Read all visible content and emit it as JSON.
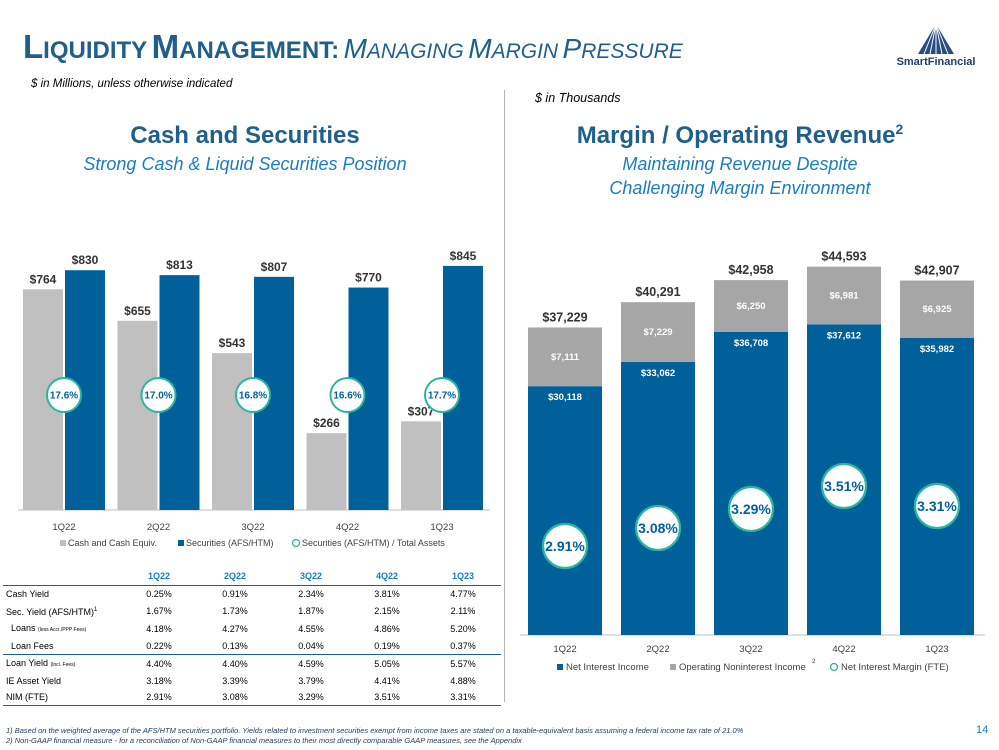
{
  "title": {
    "part1_cap": "L",
    "part1_rest": "IQUIDITY",
    "part2_cap": "M",
    "part2_rest": "ANAGEMENT:",
    "part3_cap": "M",
    "part3_rest": "ANAGING",
    "part4_cap": "M",
    "part4_rest": "ARGIN",
    "part5_cap": "P",
    "part5_rest": "RESSURE"
  },
  "brand": {
    "name": "SmartFinancial"
  },
  "left_note": "$ in Millions, unless otherwise indicated",
  "right_note": "$ in Thousands",
  "left_heading": "Cash and Securities",
  "left_subheading": "Strong Cash & Liquid Securities Position",
  "right_heading": "Margin / Operating Revenue",
  "right_heading_sup": "2",
  "right_subheading_line1": "Maintaining Revenue Despite",
  "right_subheading_line2": "Challenging Margin Environment",
  "colors": {
    "navy": "#00609a",
    "gray": "#c0c0c0",
    "dark_gray": "#a6a6a6",
    "teal": "#2bb5a0",
    "title_blue": "#1f5f8c",
    "accent_blue": "#1a7dbf"
  },
  "chart_data": [
    {
      "type": "bar",
      "categories": [
        "1Q22",
        "2Q22",
        "3Q22",
        "4Q22",
        "1Q23"
      ],
      "series": [
        {
          "name": "Cash and Cash Equiv.",
          "values": [
            764,
            655,
            543,
            266,
            307
          ],
          "labels": [
            "$764",
            "$655",
            "$543",
            "$266",
            "$307"
          ]
        },
        {
          "name": "Securities (AFS/HTM)",
          "values": [
            830,
            813,
            807,
            770,
            845
          ],
          "labels": [
            "$830",
            "$813",
            "$807",
            "$770",
            "$845"
          ]
        },
        {
          "name": "Securities (AFS/HTM) / Total Assets",
          "values": [
            17.6,
            17.0,
            16.8,
            16.6,
            17.7
          ],
          "labels": [
            "17.6%",
            "17.0%",
            "16.8%",
            "16.6%",
            "17.7%"
          ]
        }
      ],
      "ylim": [
        0,
        900
      ],
      "legend": [
        "Cash and Cash Equiv.",
        "Securities (AFS/HTM)",
        "Securities (AFS/HTM) / Total Assets"
      ]
    },
    {
      "type": "stacked bar",
      "categories": [
        "1Q22",
        "2Q22",
        "3Q22",
        "4Q22",
        "1Q23"
      ],
      "series": [
        {
          "name": "Net Interest Income",
          "values": [
            30118,
            33062,
            36708,
            37612,
            35982
          ],
          "labels": [
            "$30,118",
            "$33,062",
            "$36,708",
            "$37,612",
            "$35,982"
          ]
        },
        {
          "name": "Operating Noninterest Income",
          "values": [
            7111,
            7229,
            6250,
            6981,
            6925
          ],
          "labels": [
            "$7,111",
            "$7,229",
            "$6,250",
            "$6,981",
            "$6,925"
          ]
        },
        {
          "name": "Net Interest Margin (FTE)",
          "values": [
            2.91,
            3.08,
            3.29,
            3.51,
            3.31
          ],
          "labels": [
            "2.91%",
            "3.08%",
            "3.29%",
            "3.51%",
            "3.31%"
          ]
        }
      ],
      "totals": [
        37229,
        40291,
        42958,
        44593,
        42907
      ],
      "total_labels": [
        "$37,229",
        "$40,291",
        "$42,958",
        "$44,593",
        "$42,907"
      ],
      "ylim": [
        0,
        46000
      ],
      "legend": [
        "Net Interest Income",
        "Operating Noninterest Income",
        "Net Interest Margin (FTE)"
      ],
      "legend_sup": "2"
    }
  ],
  "table": {
    "headers": [
      "1Q22",
      "2Q22",
      "3Q22",
      "4Q22",
      "1Q23"
    ],
    "rows": [
      {
        "label": "Cash Yield",
        "values": [
          "0.25%",
          "0.91%",
          "2.34%",
          "3.81%",
          "4.77%"
        ]
      },
      {
        "label": "Sec. Yield (AFS/HTM)",
        "sup": "1",
        "values": [
          "1.67%",
          "1.73%",
          "1.87%",
          "2.15%",
          "2.11%"
        ]
      },
      {
        "label": "Loans",
        "small": "(less Accr./PPP Fees)",
        "values": [
          "4.18%",
          "4.27%",
          "4.55%",
          "4.86%",
          "5.20%"
        ]
      },
      {
        "label": "Loan Fees",
        "values": [
          "0.22%",
          "0.13%",
          "0.04%",
          "0.19%",
          "0.37%"
        ]
      },
      {
        "label": "Loan Yield",
        "small": "(incl. Fees)",
        "values": [
          "4.40%",
          "4.40%",
          "4.59%",
          "5.05%",
          "5.57%"
        ]
      },
      {
        "label": "IE Asset Yield",
        "values": [
          "3.18%",
          "3.39%",
          "3.79%",
          "4.41%",
          "4.88%"
        ]
      },
      {
        "label": "NIM (FTE)",
        "values": [
          "2.91%",
          "3.08%",
          "3.29%",
          "3.51%",
          "3.31%"
        ]
      }
    ]
  },
  "footnotes": {
    "note1": "1)  Based on the weighted average of the AFS/HTM securities portfolio. Yields related to investment securities exempt from income taxes are stated on a taxable-equivalent basis assuming a federal income tax rate of 21.0%",
    "note2": "2)  Non-GAAP financial measure - for a reconciliation of Non-GAAP financial measures to their most directly comparable GAAP measures, see the Appendix"
  },
  "page_number": "14"
}
